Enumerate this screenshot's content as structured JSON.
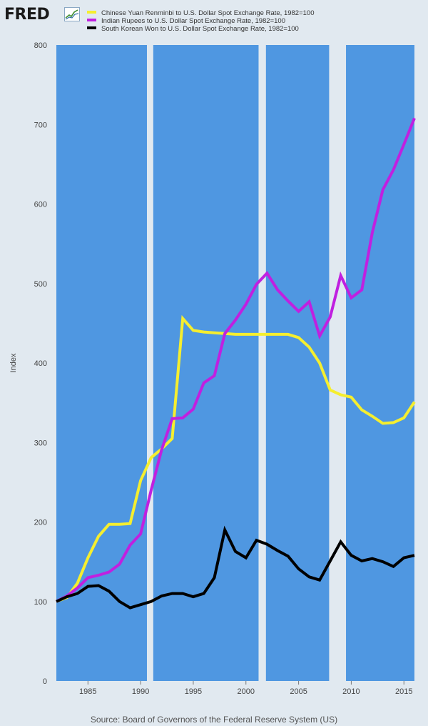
{
  "header": {
    "logo_text": "FRED",
    "logo_icon": "trend-line-icon"
  },
  "colors": {
    "plot_background": "#4f97e1",
    "recession": "#e1e9f0",
    "page_background": "#e1e9f0"
  },
  "chart_data": {
    "type": "line",
    "ylabel": "Index",
    "ylim": [
      0,
      800
    ],
    "xlim": [
      1982,
      2016
    ],
    "y_ticks": [
      0,
      100,
      200,
      300,
      400,
      500,
      600,
      700,
      800
    ],
    "x_ticks": [
      1985,
      1990,
      1995,
      2000,
      2005,
      2010,
      2015
    ],
    "grid": false,
    "legend": "top-left",
    "recessions": [
      [
        1990.6,
        1991.2
      ],
      [
        2001.2,
        2001.9
      ],
      [
        2007.9,
        2009.5
      ]
    ],
    "x": [
      1982,
      1983,
      1984,
      1985,
      1986,
      1987,
      1988,
      1989,
      1990,
      1991,
      1992,
      1993,
      1994,
      1995,
      1996,
      1997,
      1998,
      1999,
      2000,
      2001,
      2002,
      2003,
      2004,
      2005,
      2006,
      2007,
      2008,
      2009,
      2010,
      2011,
      2012,
      2013,
      2014,
      2015,
      2016
    ],
    "series": [
      {
        "name": "Chinese Yuan Renminbi to U.S. Dollar Spot Exchange Rate, 1982=100",
        "color": "#f5ee2f",
        "values": [
          100,
          105,
          123,
          155,
          182,
          197,
          197,
          198,
          252,
          281,
          292,
          305,
          456,
          441,
          439,
          438,
          437,
          436,
          436,
          436,
          436,
          436,
          436,
          432,
          420,
          400,
          366,
          360,
          357,
          341,
          333,
          324,
          325,
          331,
          351
        ]
      },
      {
        "name": "Indian Rupees to U.S. Dollar Spot Exchange Rate, 1982=100",
        "color": "#c020e0",
        "values": [
          100,
          107,
          117,
          130,
          133,
          137,
          147,
          171,
          185,
          240,
          291,
          330,
          331,
          342,
          375,
          384,
          437,
          454,
          474,
          499,
          513,
          492,
          478,
          465,
          477,
          434,
          458,
          510,
          482,
          492,
          564,
          618,
          643,
          675,
          708
        ]
      },
      {
        "name": "South Korean Won to U.S. Dollar Spot Exchange Rate, 1982=100",
        "color": "#000000",
        "values": [
          100,
          106,
          110,
          119,
          120,
          113,
          100,
          92,
          96,
          100,
          107,
          110,
          110,
          106,
          110,
          130,
          190,
          163,
          155,
          177,
          172,
          164,
          157,
          141,
          131,
          127,
          151,
          175,
          158,
          151,
          154,
          150,
          144,
          155,
          158
        ]
      }
    ],
    "source": "Source: Board of Governors of the Federal Reserve System (US)"
  }
}
